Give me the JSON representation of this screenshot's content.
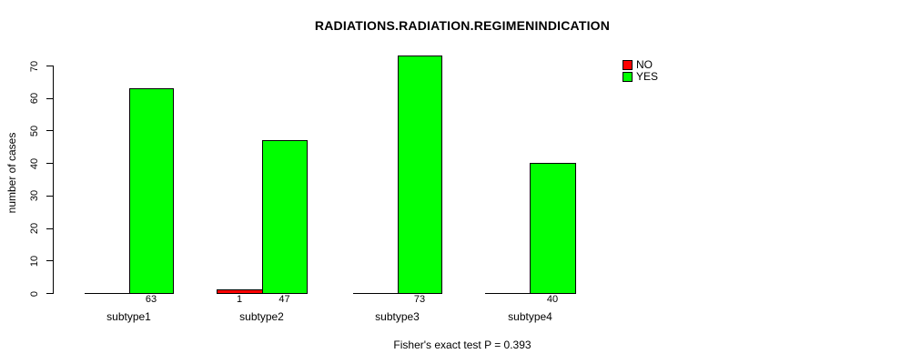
{
  "chart_data": {
    "type": "bar",
    "title": "RADIATIONS.RADIATION.REGIMENINDICATION",
    "ylabel": "number of cases",
    "xlabel": "",
    "categories": [
      "subtype1",
      "subtype2",
      "subtype3",
      "subtype4"
    ],
    "series": [
      {
        "name": "NO",
        "color": "#FF0000",
        "values": [
          0,
          1,
          0,
          0
        ]
      },
      {
        "name": "YES",
        "color": "#00FF00",
        "values": [
          63,
          47,
          73,
          40
        ]
      }
    ],
    "bar_value_labels": [
      [
        "",
        "63"
      ],
      [
        "1",
        "47"
      ],
      [
        "",
        "73"
      ],
      [
        "",
        "40"
      ]
    ],
    "y_ticks": [
      0,
      10,
      20,
      30,
      40,
      50,
      60,
      70
    ],
    "y_tick_labels": [
      "0",
      "10",
      "20",
      "30",
      "40",
      "50",
      "60",
      "70"
    ],
    "ylim": [
      0,
      73
    ],
    "grid": false,
    "legend": {
      "position": "top-right",
      "entries": [
        {
          "label": "NO",
          "color": "#FF0000"
        },
        {
          "label": "YES",
          "color": "#00FF00"
        }
      ]
    },
    "annotation": "Fisher's exact test P = 0.393"
  }
}
